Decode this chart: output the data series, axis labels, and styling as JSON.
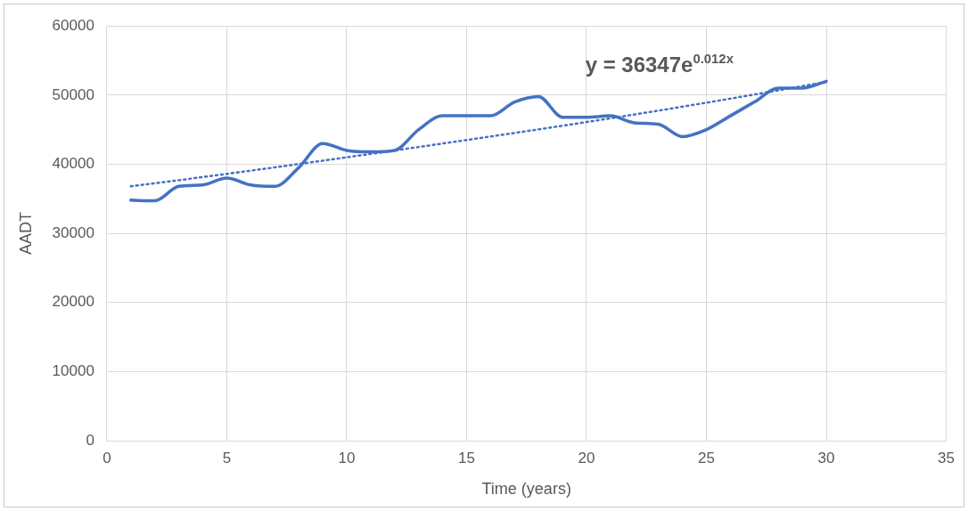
{
  "chart_data": {
    "type": "line",
    "xlabel": "Time (years)",
    "ylabel": "AADT",
    "xlim": [
      0,
      35
    ],
    "xticks": [
      0,
      5,
      10,
      15,
      20,
      25,
      30,
      35
    ],
    "ylim": [
      0,
      60000
    ],
    "yticks": [
      0,
      10000,
      20000,
      30000,
      40000,
      50000,
      60000
    ],
    "grid": true,
    "legend": false,
    "marker": "none",
    "series": [
      {
        "color": "#4472c4",
        "line_style": "solid",
        "x": [
          1,
          2,
          3,
          4,
          5,
          6,
          7,
          8,
          9,
          10,
          11,
          12,
          13,
          14,
          15,
          16,
          17,
          18,
          19,
          20,
          21,
          22,
          23,
          24,
          25,
          26,
          27,
          28,
          29,
          30
        ],
        "values": [
          34800,
          34700,
          36800,
          37000,
          38000,
          37000,
          36800,
          39500,
          43000,
          42000,
          41800,
          42000,
          45000,
          47000,
          47000,
          47000,
          49000,
          49800,
          46800,
          46800,
          47000,
          46000,
          45800,
          44000,
          45000,
          47000,
          49000,
          51000,
          51000,
          52000
        ]
      },
      {
        "color": "#4472c4",
        "line_style": "dotted",
        "x": [
          1,
          5,
          10,
          15,
          20,
          25,
          30
        ],
        "values": [
          36800,
          38600,
          41000,
          43500,
          46100,
          48900,
          51900
        ]
      }
    ],
    "annotations": [
      "y = 36347e$^{0.012x}$"
    ]
  }
}
